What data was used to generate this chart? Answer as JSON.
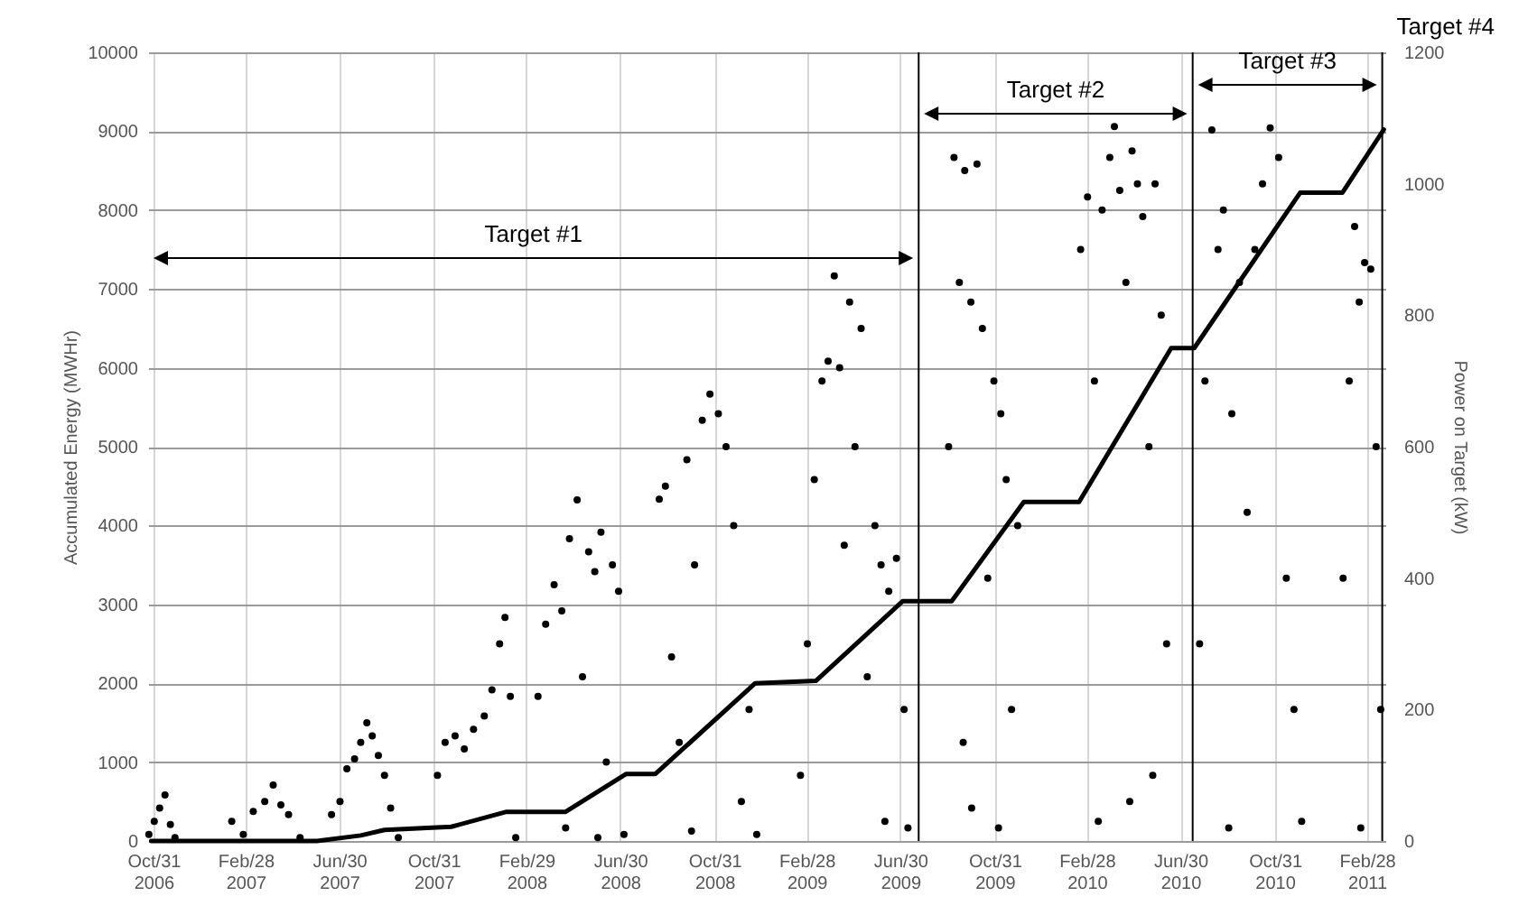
{
  "chart_data": {
    "type": "scatter",
    "xlabel": null,
    "ylabel": "Accumulated Energy (MWHr)",
    "y2label": "Power on Target (kW)",
    "xlim": [
      "2006-10-24",
      "2011-03-24"
    ],
    "xticks": [
      {
        "value": "2006-10-31",
        "label": "Oct/31 2006"
      },
      {
        "value": "2007-02-28",
        "label": "Feb/28 2007"
      },
      {
        "value": "2007-06-30",
        "label": "Jun/30 2007"
      },
      {
        "value": "2007-10-31",
        "label": "Oct/31 2007"
      },
      {
        "value": "2008-02-29",
        "label": "Feb/29 2008"
      },
      {
        "value": "2008-06-30",
        "label": "Jun/30 2008"
      },
      {
        "value": "2008-10-31",
        "label": "Oct/31 2008"
      },
      {
        "value": "2009-02-28",
        "label": "Feb/28 2009"
      },
      {
        "value": "2009-06-30",
        "label": "Jun/30 2009"
      },
      {
        "value": "2009-10-31",
        "label": "Oct/31 2009"
      },
      {
        "value": "2010-02-28",
        "label": "Feb/28 2010"
      },
      {
        "value": "2010-06-30",
        "label": "Jun/30 2010"
      },
      {
        "value": "2010-10-31",
        "label": "Oct/31 2010"
      },
      {
        "value": "2011-02-28",
        "label": "Feb/28 2011"
      }
    ],
    "ylim": [
      0,
      10000
    ],
    "yticks": [
      0,
      1000,
      2000,
      3000,
      4000,
      5000,
      6000,
      7000,
      8000,
      9000,
      10000
    ],
    "y2lim": [
      0,
      1200
    ],
    "y2ticks": [
      0,
      200,
      400,
      600,
      800,
      1000,
      1200
    ],
    "grid": true,
    "series": [
      {
        "type": "line",
        "color": "#000000",
        "x": [
          "2006-10-28",
          "2007-06-01",
          "2007-07-28",
          "2007-08-28",
          "2007-11-23",
          "2008-02-03",
          "2008-04-20",
          "2008-07-08",
          "2008-08-15",
          "2008-12-23",
          "2009-03-12",
          "2009-07-03",
          "2009-09-05",
          "2009-12-08",
          "2010-02-18",
          "2010-06-18",
          "2010-07-18",
          "2010-12-03",
          "2011-01-27",
          "2011-03-22"
        ],
        "values": [
          0,
          0,
          70,
          140,
          180,
          370,
          370,
          850,
          850,
          2000,
          2030,
          3040,
          3040,
          4300,
          4300,
          6250,
          6250,
          8220,
          8220,
          9020
        ]
      },
      {
        "axis": "y2",
        "marker": "circle",
        "color": "#000000",
        "x": [
          "2006-10-25",
          "2006-11-01",
          "2006-11-08",
          "2006-11-15",
          "2006-11-22",
          "2006-11-28",
          "2007-02-10",
          "2007-02-25",
          "2007-03-10",
          "2007-03-25",
          "2007-04-05",
          "2007-04-15",
          "2007-04-25",
          "2007-05-10",
          "2007-06-20",
          "2007-07-01",
          "2007-07-10",
          "2007-07-20",
          "2007-07-28",
          "2007-08-05",
          "2007-08-12",
          "2007-08-20",
          "2007-08-28",
          "2007-09-05",
          "2007-09-15",
          "2007-11-05",
          "2007-11-15",
          "2007-11-28",
          "2007-12-10",
          "2007-12-22",
          "2008-01-05",
          "2008-01-15",
          "2008-01-25",
          "2008-02-01",
          "2008-02-08",
          "2008-02-15",
          "2008-03-15",
          "2008-03-25",
          "2008-04-05",
          "2008-04-15",
          "2008-04-20",
          "2008-04-25",
          "2008-05-05",
          "2008-05-12",
          "2008-05-20",
          "2008-05-28",
          "2008-06-01",
          "2008-06-05",
          "2008-06-12",
          "2008-06-20",
          "2008-06-28",
          "2008-07-05",
          "2008-08-20",
          "2008-08-28",
          "2008-09-05",
          "2008-09-15",
          "2008-09-25",
          "2008-10-01",
          "2008-10-05",
          "2008-10-15",
          "2008-10-25",
          "2008-11-05",
          "2008-11-15",
          "2008-11-25",
          "2008-12-05",
          "2008-12-15",
          "2008-12-25",
          "2009-02-20",
          "2009-03-01",
          "2009-03-10",
          "2009-03-20",
          "2009-03-28",
          "2009-04-05",
          "2009-04-12",
          "2009-04-18",
          "2009-04-25",
          "2009-05-02",
          "2009-05-10",
          "2009-05-18",
          "2009-05-28",
          "2009-06-05",
          "2009-06-10",
          "2009-06-15",
          "2009-06-25",
          "2009-07-05",
          "2009-07-10",
          "2009-09-01",
          "2009-09-08",
          "2009-09-15",
          "2009-09-20",
          "2009-09-22",
          "2009-09-30",
          "2009-10-01",
          "2009-10-08",
          "2009-10-15",
          "2009-10-22",
          "2009-10-30",
          "2009-11-05",
          "2009-11-08",
          "2009-11-15",
          "2009-11-22",
          "2009-11-30",
          "2010-02-20",
          "2010-03-01",
          "2010-03-10",
          "2010-03-15",
          "2010-03-20",
          "2010-03-30",
          "2010-04-05",
          "2010-04-12",
          "2010-04-20",
          "2010-04-25",
          "2010-04-28",
          "2010-05-05",
          "2010-05-12",
          "2010-05-20",
          "2010-05-25",
          "2010-05-28",
          "2010-06-05",
          "2010-06-12",
          "2010-07-25",
          "2010-08-01",
          "2010-08-10",
          "2010-08-18",
          "2010-08-25",
          "2010-09-01",
          "2010-09-05",
          "2010-09-15",
          "2010-09-25",
          "2010-10-05",
          "2010-10-15",
          "2010-10-25",
          "2010-11-05",
          "2010-11-15",
          "2010-11-25",
          "2010-12-05",
          "2011-01-28",
          "2011-02-05",
          "2011-02-12",
          "2011-02-18",
          "2011-02-20",
          "2011-02-25",
          "2011-03-05",
          "2011-03-12",
          "2011-03-18"
        ],
        "values": [
          10,
          30,
          50,
          70,
          25,
          5,
          30,
          10,
          45,
          60,
          85,
          55,
          40,
          5,
          40,
          60,
          110,
          125,
          150,
          180,
          160,
          130,
          100,
          50,
          5,
          100,
          150,
          160,
          140,
          170,
          190,
          230,
          300,
          340,
          220,
          5,
          220,
          330,
          390,
          350,
          20,
          460,
          519,
          250,
          440,
          410,
          5,
          470,
          120,
          420,
          380,
          10,
          520,
          540,
          280,
          150,
          580,
          15,
          420,
          640,
          680,
          650,
          600,
          480,
          60,
          200,
          10,
          100,
          300,
          550,
          700,
          730,
          860,
          720,
          450,
          820,
          600,
          780,
          250,
          480,
          420,
          30,
          380,
          430,
          200,
          20,
          600,
          1040,
          850,
          150,
          1020,
          820,
          50,
          1030,
          780,
          400,
          700,
          20,
          650,
          550,
          200,
          480,
          900,
          980,
          700,
          30,
          960,
          1040,
          1087,
          990,
          850,
          60,
          1050,
          1000,
          950,
          600,
          100,
          1000,
          800,
          300,
          300,
          700,
          1082,
          900,
          960,
          20,
          650,
          850,
          500,
          900,
          1000,
          1085,
          1040,
          400,
          200,
          30,
          400,
          700,
          935,
          820,
          20,
          880,
          870,
          600,
          200
        ]
      }
    ],
    "ref_lines": [
      {
        "axis": "x",
        "value": "2009-07-24",
        "color": "#000000"
      },
      {
        "axis": "x",
        "value": "2010-07-16",
        "color": "#000000"
      },
      {
        "axis": "x",
        "value": "2011-03-20",
        "color": "#000000"
      }
    ],
    "annotations": [
      "Target #1",
      "Target #2",
      "Target #3",
      "Target #4"
    ]
  }
}
